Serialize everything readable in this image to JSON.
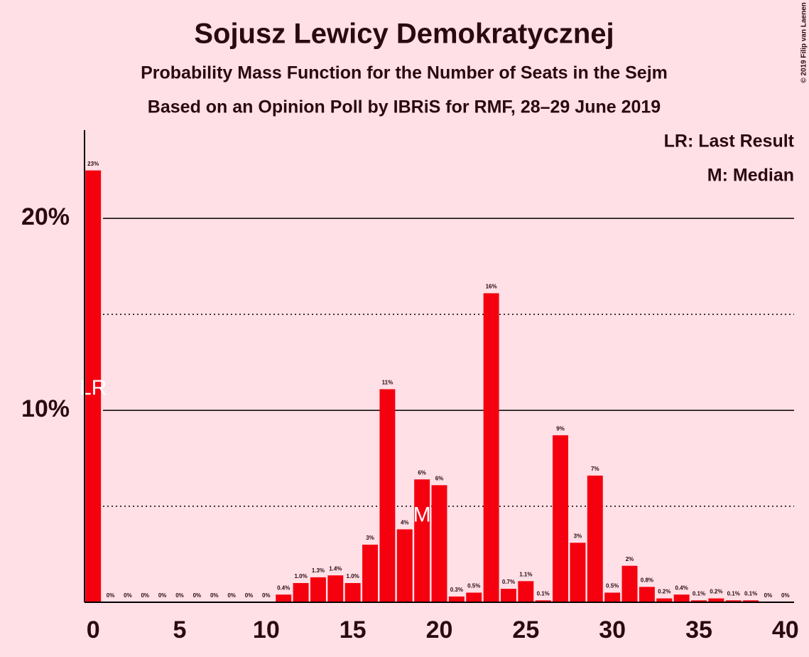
{
  "chart_data": {
    "type": "bar",
    "title": "Sojusz Lewicy Demokratycznej",
    "subtitle": "Probability Mass Function for the Number of Seats in the Sejm",
    "subtitle2": "Based on an Opinion Poll by IBRiS for RMF, 28–29 June 2019",
    "copyright": "© 2019 Filip van Laenen",
    "legend": [
      "LR: Last Result",
      "M: Median"
    ],
    "annotations": [
      {
        "label": "LR",
        "x": 0
      },
      {
        "label": "M",
        "x": 19
      }
    ],
    "x": [
      0,
      1,
      2,
      3,
      4,
      5,
      6,
      7,
      8,
      9,
      10,
      11,
      12,
      13,
      14,
      15,
      16,
      17,
      18,
      19,
      20,
      21,
      22,
      23,
      24,
      25,
      26,
      27,
      28,
      29,
      30,
      31,
      32,
      33,
      34,
      35,
      36,
      37,
      38,
      39,
      40
    ],
    "values": [
      22.5,
      0,
      0,
      0,
      0,
      0,
      0,
      0,
      0,
      0,
      0,
      0.4,
      1.0,
      1.3,
      1.4,
      1.0,
      3.0,
      11.1,
      3.8,
      6.4,
      6.1,
      0.3,
      0.5,
      16.1,
      0.7,
      1.1,
      0.1,
      8.7,
      3.1,
      6.6,
      0.5,
      1.9,
      0.8,
      0.2,
      0.4,
      0.1,
      0.2,
      0.1,
      0.1,
      0,
      0
    ],
    "value_labels": [
      "23%",
      "0%",
      "0%",
      "0%",
      "0%",
      "0%",
      "0%",
      "0%",
      "0%",
      "0%",
      "0%",
      "0.4%",
      "1.0%",
      "1.3%",
      "1.4%",
      "1.0%",
      "3%",
      "11%",
      "4%",
      "6%",
      "6%",
      "0.3%",
      "0.5%",
      "16%",
      "0.7%",
      "1.1%",
      "0.1%",
      "9%",
      "3%",
      "7%",
      "0.5%",
      "2%",
      "0.8%",
      "0.2%",
      "0.4%",
      "0.1%",
      "0.2%",
      "0.1%",
      "0.1%",
      "0%",
      "0%"
    ],
    "color": "#f5000f",
    "xlim": [
      -0.5,
      40.5
    ],
    "xticks": [
      0,
      5,
      10,
      15,
      20,
      25,
      30,
      35,
      40
    ],
    "ylim": [
      0,
      24.6
    ],
    "yticks": [
      {
        "value": 10,
        "label": "10%"
      },
      {
        "value": 20,
        "label": "20%"
      }
    ],
    "minor_yticks": [
      5,
      15
    ],
    "grid": true
  }
}
